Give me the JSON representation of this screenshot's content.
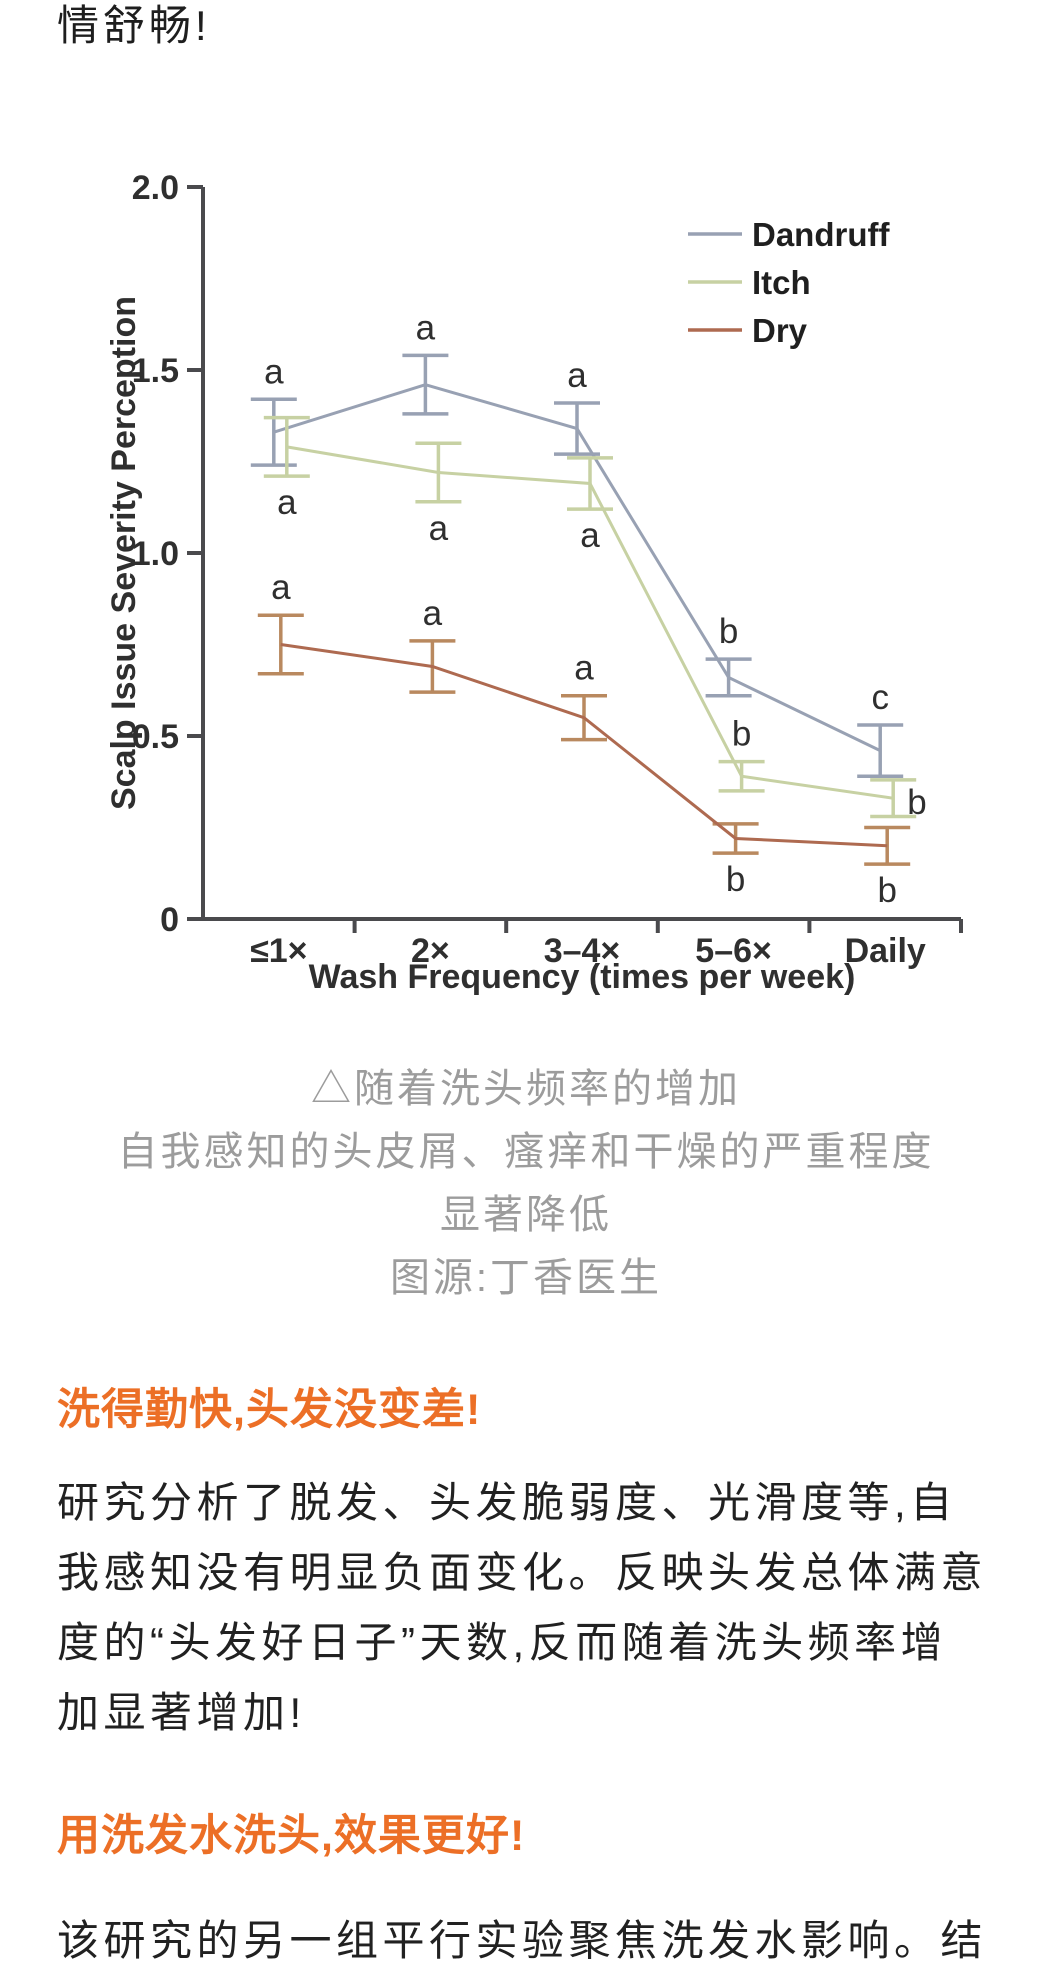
{
  "page": {
    "top_partial_text": "情舒畅!",
    "caption_lines": [
      "△随着洗头频率的增加",
      "自我感知的头皮屑、瘙痒和干燥的严重程度",
      "显著降低",
      "图源:丁香医生"
    ],
    "sections": [
      {
        "heading": "洗得勤快,头发没变差!",
        "lines": [
          "研究分析了脱发、头发脆弱度、光滑度等,自",
          "我感知没有明显负面变化。反映头发总体满意",
          "度的“头发好日子”天数,反而随着洗头频率增",
          "加显著增加!"
        ]
      },
      {
        "heading": "用洗发水洗头,效果更好!",
        "lines": [
          "该研究的另一组平行实验聚焦洗发水影响。结"
        ]
      }
    ],
    "colors": {
      "accent_orange": "#ec6f26",
      "caption_gray": "#9c9c9c",
      "body_text": "#212121",
      "chart_axis": "#4a4a4d"
    }
  },
  "chart_data": {
    "type": "line",
    "title": "",
    "xlabel": "Wash Frequency (times per week)",
    "ylabel": "Scalp Issue Severity Perception",
    "categories": [
      "≤1×",
      "2×",
      "3–4×",
      "5–6×",
      "Daily"
    ],
    "ylim": [
      0,
      2.0
    ],
    "yticks": [
      0,
      0.5,
      1.0,
      1.5,
      2.0
    ],
    "ytick_labels": [
      "0",
      "0.5",
      "1.0",
      "1.5",
      "2.0"
    ],
    "grid": false,
    "legend_position": "top-right",
    "error_bars": true,
    "series": [
      {
        "name": "Dandruff",
        "color": "#98a1b3",
        "error_color": "#98a1b3",
        "letter_color": "#8a91a8",
        "x_offset": -5,
        "values": [
          1.33,
          1.46,
          1.34,
          0.66,
          0.46
        ],
        "errors": [
          0.09,
          0.08,
          0.07,
          0.05,
          0.07
        ],
        "letters": [
          "a",
          "a",
          "a",
          "b",
          "c"
        ],
        "letter_pos": [
          "above",
          "above",
          "above",
          "above",
          "above"
        ]
      },
      {
        "name": "Itch",
        "color": "#c7d1a3",
        "error_color": "#c7d1a3",
        "letter_color": "#a3b871",
        "x_offset": 8,
        "values": [
          1.29,
          1.22,
          1.19,
          0.39,
          0.33
        ],
        "errors": [
          0.08,
          0.08,
          0.07,
          0.04,
          0.05
        ],
        "letters": [
          "a",
          "a",
          "a",
          "b",
          "b"
        ],
        "letter_pos": [
          "below",
          "below",
          "below",
          "above",
          "right"
        ]
      },
      {
        "name": "Dry",
        "color": "#ae6a50",
        "error_color": "#b9895f",
        "letter_color": "#c4593f",
        "x_offset": 2,
        "values": [
          0.75,
          0.69,
          0.55,
          0.22,
          0.2
        ],
        "errors": [
          0.08,
          0.07,
          0.06,
          0.04,
          0.05
        ],
        "letters": [
          "a",
          "a",
          "a",
          "b",
          "b"
        ],
        "letter_pos": [
          "above",
          "above",
          "above",
          "below",
          "below"
        ]
      }
    ]
  }
}
